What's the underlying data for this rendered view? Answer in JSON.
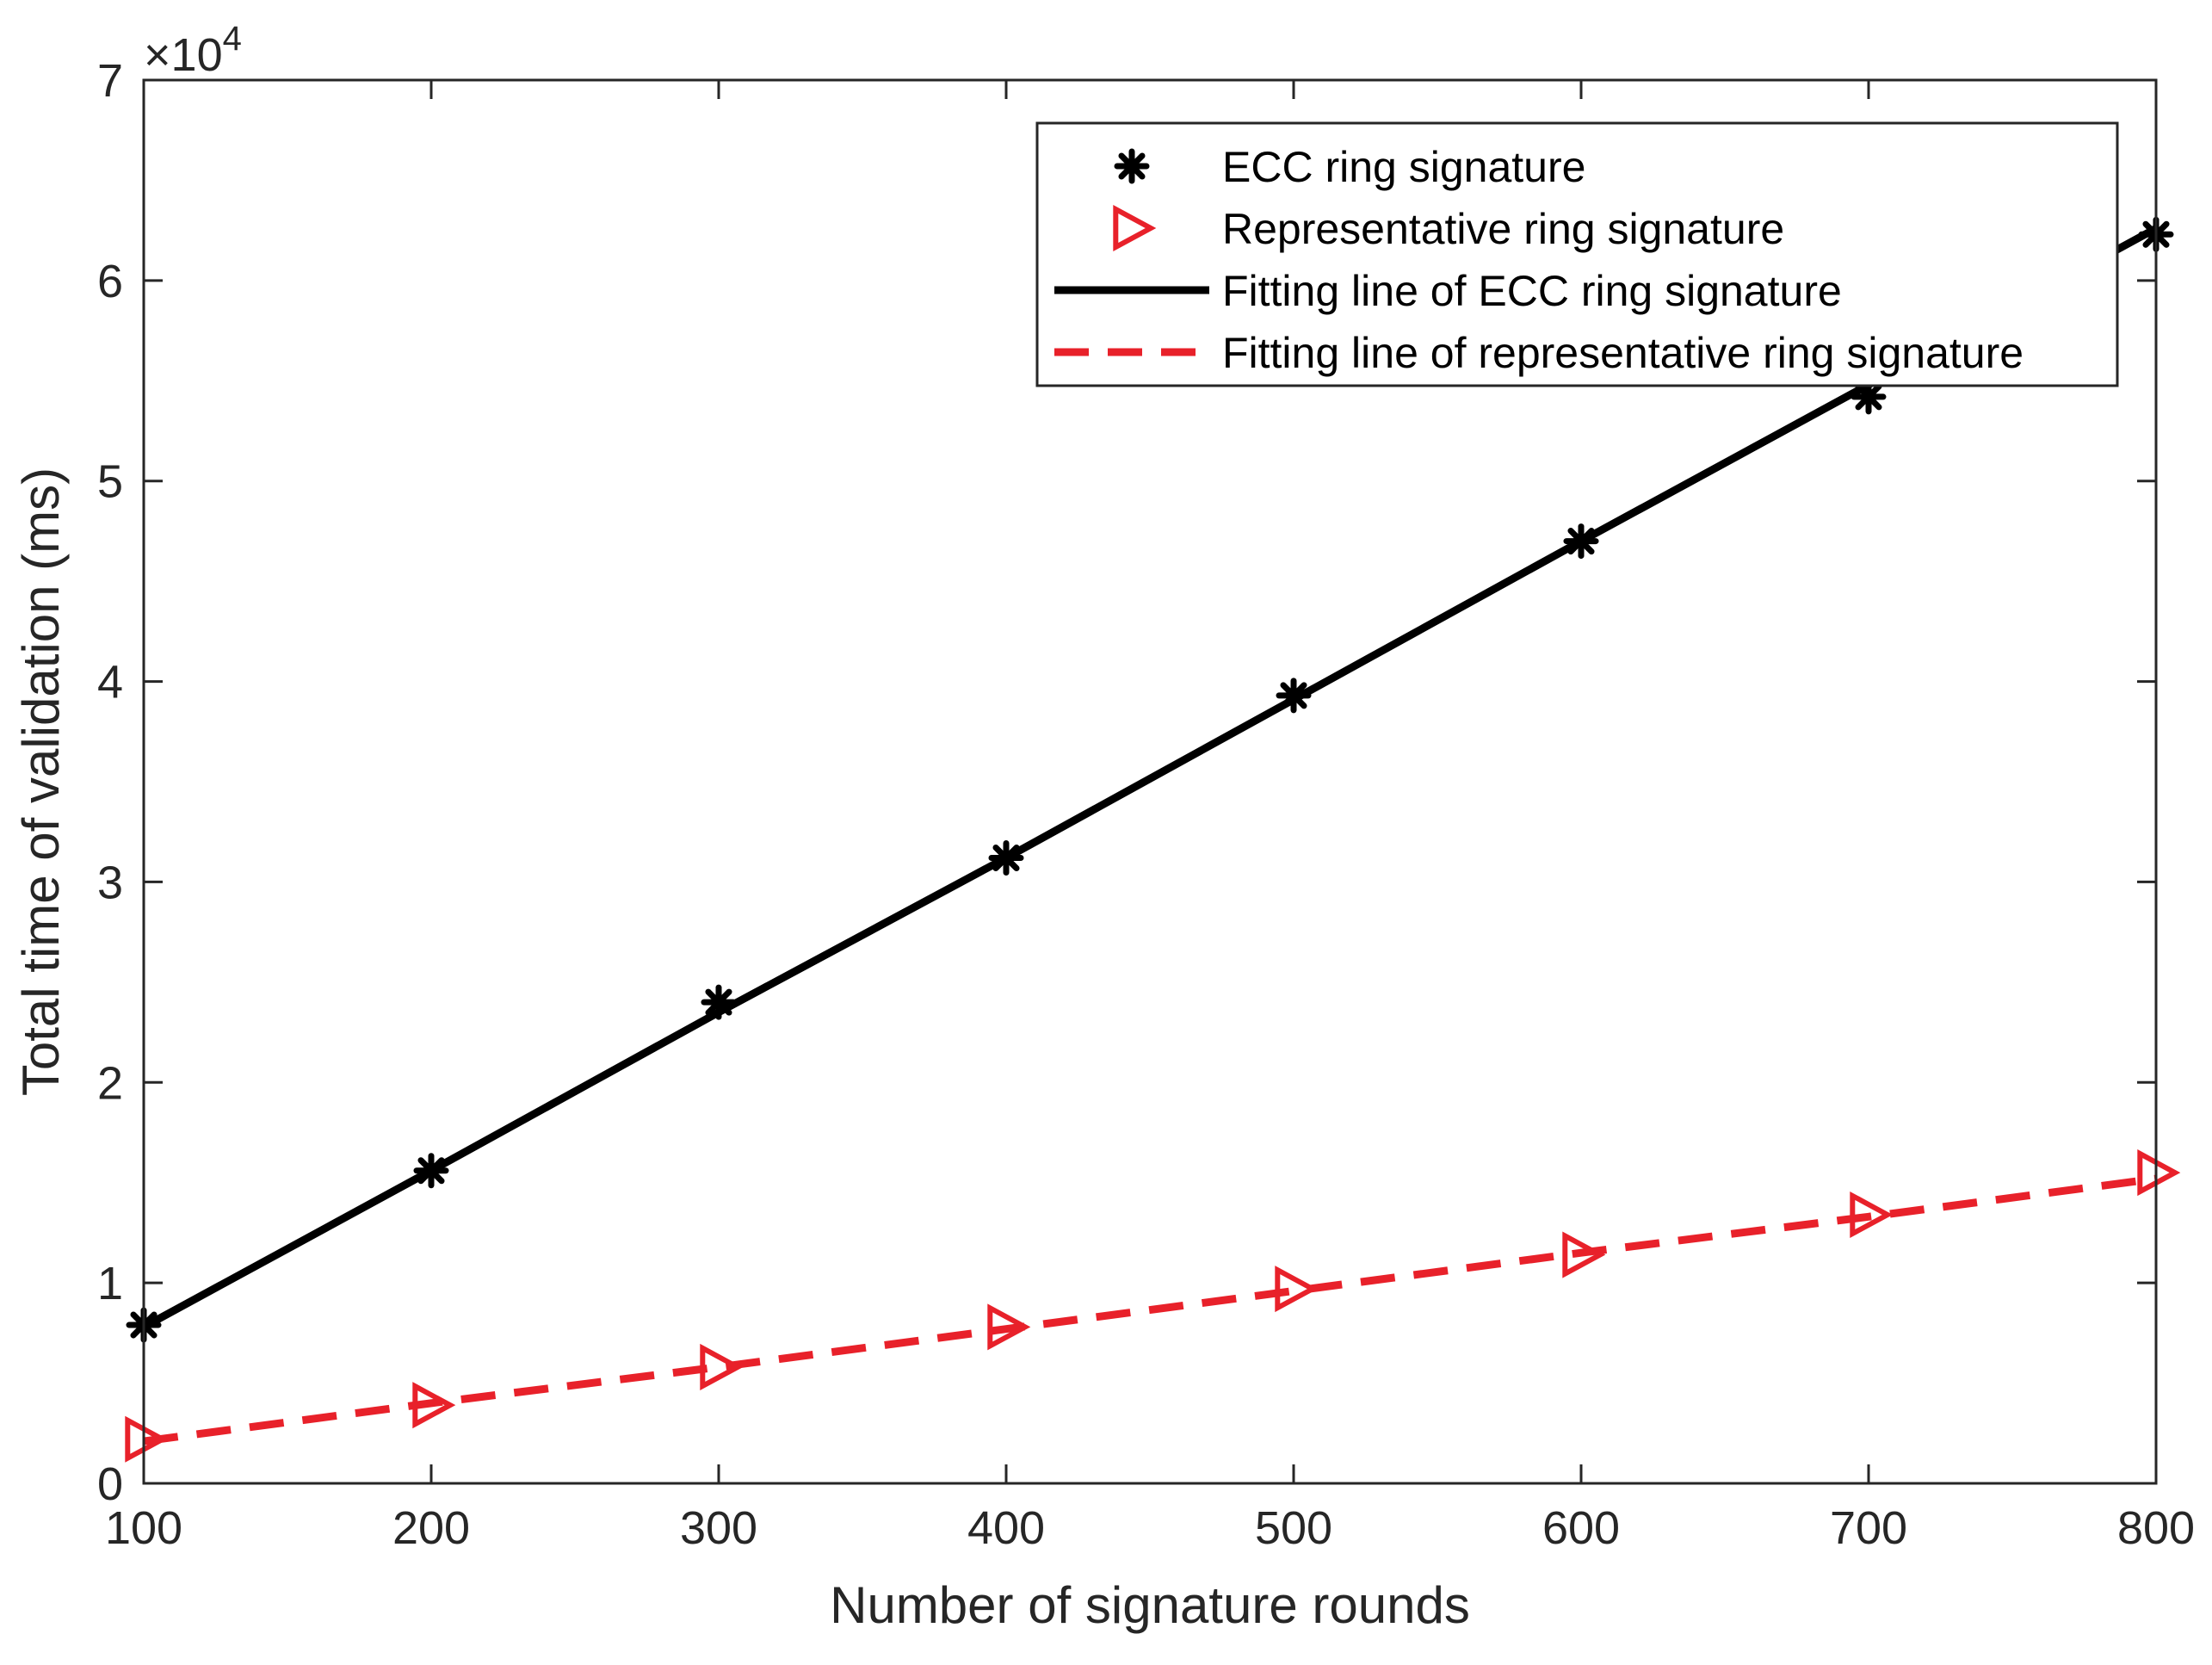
{
  "chart_data": {
    "type": "line",
    "title": "",
    "xlabel": "Number of signature rounds",
    "ylabel": "Total time of validation (ms)",
    "xlim": [
      100,
      800
    ],
    "ylim": [
      0,
      70000
    ],
    "xticks": [
      100,
      200,
      300,
      400,
      500,
      600,
      700,
      800
    ],
    "xtick_labels": [
      "100",
      "200",
      "300",
      "400",
      "500",
      "600",
      "700",
      "800"
    ],
    "yticks": [
      0,
      10000,
      20000,
      30000,
      40000,
      50000,
      60000,
      70000
    ],
    "ytick_labels": [
      "0",
      "1",
      "2",
      "3",
      "4",
      "5",
      "6",
      "7"
    ],
    "y_exponent_prefix": "×10",
    "y_exponent_power": "4",
    "grid": false,
    "legend_position": "top-right",
    "x": [
      100,
      200,
      300,
      400,
      500,
      600,
      700,
      800
    ],
    "series": [
      {
        "name": "ECC ring signature",
        "kind": "markers",
        "marker": "asterisk",
        "color": "#000000",
        "values": [
          7900,
          15600,
          24000,
          31200,
          39300,
          47000,
          54200,
          62300
        ]
      },
      {
        "name": "Representative ring signature",
        "kind": "markers",
        "marker": "triangle-right",
        "color": "#e8212a",
        "values": [
          2200,
          3900,
          5800,
          7800,
          9700,
          11400,
          13400,
          15500
        ]
      },
      {
        "name": "Fitting line of ECC ring signature",
        "kind": "line",
        "style": "solid",
        "color": "#000000",
        "values": [
          7800,
          15600,
          23500,
          31200,
          39100,
          47000,
          54800,
          62600
        ]
      },
      {
        "name": "Fitting line of representative ring signature",
        "kind": "line",
        "style": "dashed",
        "color": "#e8212a",
        "values": [
          2100,
          4000,
          5800,
          7700,
          9600,
          11500,
          13300,
          15200
        ]
      }
    ]
  }
}
